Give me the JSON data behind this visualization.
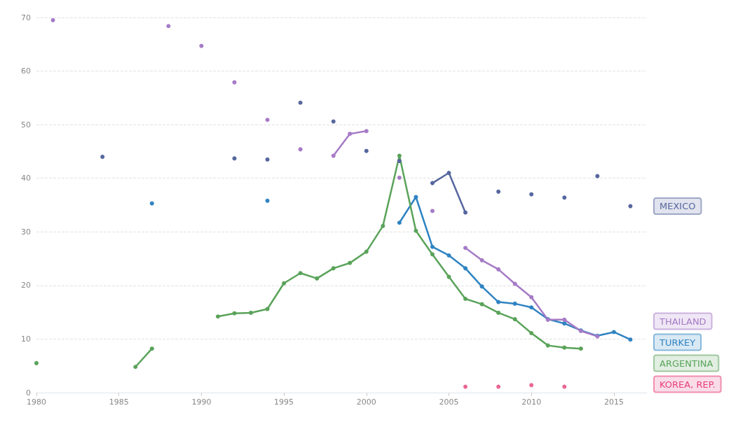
{
  "chart_data": {
    "type": "line",
    "x": [
      1980,
      1981,
      1982,
      1983,
      1984,
      1985,
      1986,
      1987,
      1988,
      1989,
      1990,
      1991,
      1992,
      1993,
      1994,
      1995,
      1996,
      1997,
      1998,
      1999,
      2000,
      2001,
      2002,
      2003,
      2004,
      2005,
      2006,
      2007,
      2008,
      2009,
      2010,
      2011,
      2012,
      2013,
      2014,
      2015,
      2016
    ],
    "xlim": [
      1980,
      2017
    ],
    "xticks": [
      1980,
      1985,
      1990,
      1995,
      2000,
      2005,
      2010,
      2015
    ],
    "ylim": [
      0,
      70
    ],
    "yticks": [
      0,
      10,
      20,
      30,
      40,
      50,
      60,
      70
    ],
    "grid": "y",
    "legend": "right",
    "marker": "circle",
    "line_style": "solid",
    "series": [
      {
        "name": "MEXICO",
        "color": "#56679e",
        "values": [
          null,
          null,
          null,
          null,
          44.0,
          null,
          null,
          null,
          null,
          null,
          null,
          null,
          43.7,
          null,
          43.5,
          null,
          54.1,
          null,
          50.6,
          null,
          45.1,
          null,
          43.2,
          null,
          39.1,
          41.0,
          33.6,
          null,
          37.5,
          null,
          37.0,
          null,
          36.4,
          null,
          40.4,
          null,
          34.8
        ]
      },
      {
        "name": "TURKEY",
        "color": "#2f83c2",
        "values": [
          null,
          null,
          null,
          null,
          null,
          null,
          null,
          35.3,
          null,
          null,
          null,
          null,
          null,
          null,
          35.8,
          null,
          null,
          null,
          null,
          null,
          null,
          null,
          31.7,
          36.5,
          27.2,
          25.6,
          23.2,
          19.8,
          16.9,
          16.6,
          15.9,
          13.7,
          12.9,
          11.6,
          10.6,
          11.3,
          9.9
        ]
      },
      {
        "name": "ARGENTINA",
        "color": "#5aa35a",
        "values": [
          5.5,
          null,
          null,
          null,
          null,
          null,
          4.8,
          8.2,
          null,
          null,
          null,
          14.2,
          14.8,
          14.9,
          15.6,
          20.4,
          22.3,
          21.3,
          23.2,
          24.2,
          26.3,
          31.1,
          44.2,
          30.2,
          25.8,
          21.6,
          17.5,
          16.5,
          14.9,
          13.7,
          11.1,
          8.8,
          8.4,
          8.2,
          null,
          null,
          null
        ]
      },
      {
        "name": "KOREA, REP.",
        "type": "scatter",
        "color": "#e63e7a",
        "values": [
          null,
          null,
          null,
          null,
          null,
          null,
          null,
          null,
          null,
          null,
          null,
          null,
          null,
          null,
          null,
          null,
          null,
          null,
          null,
          null,
          null,
          null,
          null,
          null,
          null,
          null,
          1.1,
          null,
          1.1,
          null,
          1.4,
          null,
          1.1,
          null,
          null,
          null,
          null
        ]
      },
      {
        "name": "THAILAND",
        "color": "#a67bc6",
        "values": [
          null,
          69.5,
          null,
          null,
          null,
          null,
          null,
          null,
          68.4,
          null,
          64.7,
          null,
          57.9,
          null,
          50.9,
          null,
          45.4,
          null,
          44.2,
          48.3,
          48.8,
          null,
          40.1,
          null,
          33.9,
          null,
          27.0,
          24.7,
          23.0,
          20.3,
          17.8,
          13.6,
          13.6,
          11.5,
          10.5,
          null,
          null
        ]
      }
    ]
  }
}
